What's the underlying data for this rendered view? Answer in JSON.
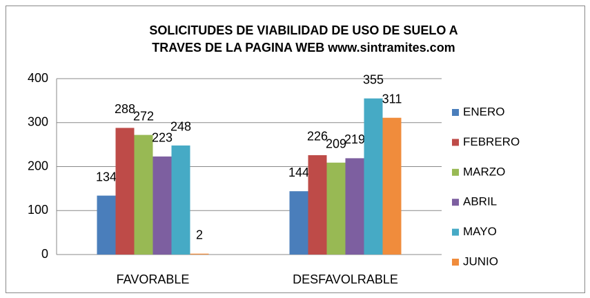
{
  "chart_data": {
    "type": "bar",
    "title": [
      "SOLICITUDES DE VIABILIDAD DE USO DE SUELO A",
      "TRAVES DE LA PAGINA WEB www.sintramites.com"
    ],
    "categories": [
      "FAVORABLE",
      "DESFAVOLRABLE"
    ],
    "series": [
      {
        "name": "ENERO",
        "color": "#4a7ebb",
        "values": [
          134,
          144
        ]
      },
      {
        "name": "FEBRERO",
        "color": "#be4b48",
        "values": [
          288,
          226
        ]
      },
      {
        "name": "MARZO",
        "color": "#98b954",
        "values": [
          272,
          209
        ]
      },
      {
        "name": "ABRIL",
        "color": "#7d5fa0",
        "values": [
          223,
          219
        ]
      },
      {
        "name": "MAYO",
        "color": "#46aac5",
        "values": [
          248,
          355
        ]
      },
      {
        "name": "JUNIO",
        "color": "#f08c3c",
        "values": [
          2,
          311
        ]
      }
    ],
    "ylim": [
      0,
      400
    ],
    "yticks": [
      0,
      100,
      200,
      300,
      400
    ],
    "grid": true,
    "legend": "right"
  }
}
